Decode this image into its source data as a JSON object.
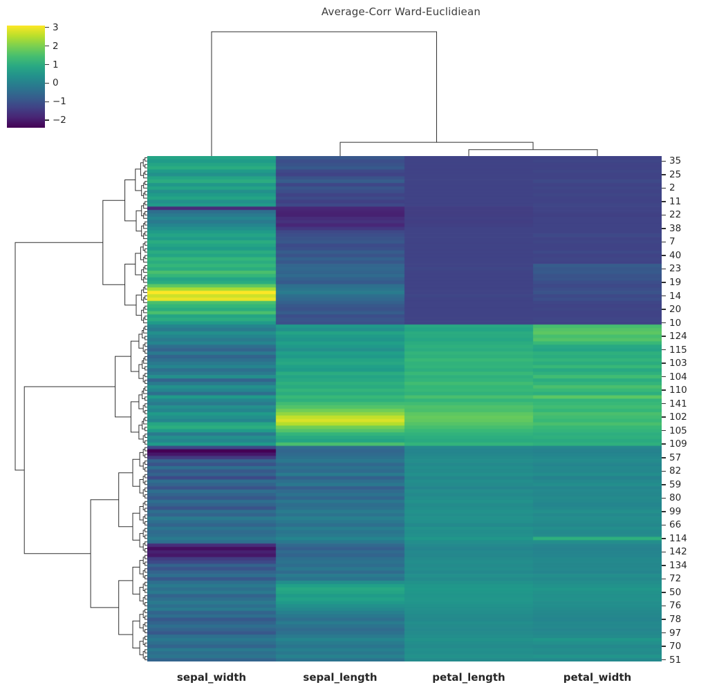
{
  "title": "Average-Corr Ward-Euclidiean",
  "colorbar": {
    "tick_values": [
      3,
      2,
      1,
      0,
      -1,
      -2
    ],
    "tick_labels": [
      "3",
      "2",
      "1",
      "0",
      "−1",
      "−2"
    ],
    "colormap": "viridis"
  },
  "chart_data": {
    "type": "heatmap",
    "title": "Average-Corr Ward-Euclidiean",
    "colormap": "viridis",
    "vmin": -2.4,
    "vmax": 3.1,
    "legend_position": "top-left",
    "columns": [
      "sepal_width",
      "sepal_length",
      "petal_length",
      "petal_width"
    ],
    "col_merge_distances": [
      0.03,
      0.09,
      1.0
    ],
    "row_top_merge_distances": [
      0.93,
      1.0
    ],
    "row_clusters": [
      [
        0,
        49
      ],
      [
        50,
        85
      ],
      [
        86,
        149
      ]
    ],
    "row_tick_start": 1,
    "row_tick_step": 4,
    "row_tick_labels": [
      "35",
      "25",
      "2",
      "11",
      "22",
      "38",
      "7",
      "40",
      "23",
      "19",
      "14",
      "20",
      "10",
      "124",
      "115",
      "103",
      "104",
      "110",
      "141",
      "102",
      "105",
      "109",
      "57",
      "82",
      "59",
      "80",
      "99",
      "66",
      "114",
      "142",
      "134",
      "72",
      "50",
      "76",
      "78",
      "97",
      "70",
      "51"
    ],
    "values": [
      [
        0.8,
        -0.9,
        -1.3,
        -1.3
      ],
      [
        0.6,
        -1.1,
        -1.3,
        -1.25
      ],
      [
        0.8,
        -1.0,
        -1.3,
        -1.3
      ],
      [
        1.0,
        -0.85,
        -1.3,
        -1.3
      ],
      [
        0.6,
        -1.2,
        -1.3,
        -1.25
      ],
      [
        0.35,
        -1.3,
        -1.3,
        -1.3
      ],
      [
        0.8,
        -1.0,
        -1.3,
        -1.3
      ],
      [
        1.0,
        -0.8,
        -1.3,
        -1.2
      ],
      [
        0.5,
        -1.25,
        -1.3,
        -1.3
      ],
      [
        0.8,
        -0.95,
        -1.3,
        -1.25
      ],
      [
        0.35,
        -1.1,
        -1.3,
        -1.3
      ],
      [
        0.6,
        -1.3,
        -1.3,
        -1.25
      ],
      [
        0.8,
        -1.15,
        -1.3,
        -1.3
      ],
      [
        0.35,
        -1.35,
        -1.3,
        -1.3
      ],
      [
        0.6,
        -1.2,
        -1.3,
        -1.25
      ],
      [
        -1.74,
        -1.8,
        -1.4,
        -1.3
      ],
      [
        -0.4,
        -1.87,
        -1.4,
        -1.3
      ],
      [
        -0.15,
        -1.9,
        -1.4,
        -1.35
      ],
      [
        0.1,
        -1.7,
        -1.35,
        -1.3
      ],
      [
        -0.15,
        -1.6,
        -1.4,
        -1.3
      ],
      [
        0.1,
        -1.8,
        -1.35,
        -1.3
      ],
      [
        0.35,
        -1.5,
        -1.3,
        -1.3
      ],
      [
        0.6,
        -1.2,
        -1.3,
        -1.3
      ],
      [
        0.8,
        -1.1,
        -1.3,
        -1.2
      ],
      [
        0.6,
        -1.0,
        -1.3,
        -1.3
      ],
      [
        1.0,
        -0.9,
        -1.3,
        -1.25
      ],
      [
        0.8,
        -1.15,
        -1.3,
        -1.3
      ],
      [
        0.6,
        -1.05,
        -1.3,
        -1.3
      ],
      [
        1.0,
        -0.8,
        -1.3,
        -1.2
      ],
      [
        0.8,
        -1.0,
        -1.3,
        -1.3
      ],
      [
        1.25,
        -0.7,
        -1.3,
        -1.25
      ],
      [
        1.0,
        -0.9,
        -1.3,
        -1.3
      ],
      [
        1.25,
        -0.6,
        -1.3,
        -0.8
      ],
      [
        1.0,
        -0.55,
        -1.25,
        -0.9
      ],
      [
        1.5,
        -0.65,
        -1.3,
        -0.85
      ],
      [
        1.25,
        -0.5,
        -1.3,
        -1.0
      ],
      [
        0.8,
        -0.7,
        -1.3,
        -0.95
      ],
      [
        1.0,
        -0.85,
        -1.3,
        -1.1
      ],
      [
        1.7,
        -0.4,
        -1.3,
        -1.2
      ],
      [
        2.4,
        -0.25,
        -1.3,
        -1.1
      ],
      [
        3.1,
        -0.1,
        -1.3,
        -1.0
      ],
      [
        2.7,
        -0.4,
        -1.25,
        -1.2
      ],
      [
        2.95,
        -0.55,
        -1.3,
        -1.1
      ],
      [
        1.5,
        -0.7,
        -1.3,
        -1.25
      ],
      [
        1.25,
        -0.9,
        -1.3,
        -1.3
      ],
      [
        1.0,
        -1.0,
        -1.3,
        -1.25
      ],
      [
        1.5,
        -0.8,
        -1.3,
        -1.3
      ],
      [
        0.8,
        -1.1,
        -1.3,
        -1.3
      ],
      [
        1.0,
        -0.95,
        -1.3,
        -1.25
      ],
      [
        0.6,
        -1.05,
        -1.3,
        -1.3
      ],
      [
        0.1,
        0.55,
        0.9,
        1.45
      ],
      [
        -0.15,
        0.35,
        0.8,
        1.6
      ],
      [
        0.35,
        0.8,
        1.0,
        1.7
      ],
      [
        0.1,
        0.6,
        0.95,
        1.45
      ],
      [
        -0.15,
        0.45,
        0.85,
        1.6
      ],
      [
        0.1,
        0.7,
        1.0,
        1.3
      ],
      [
        -0.4,
        0.55,
        1.1,
        0.9
      ],
      [
        -0.65,
        0.35,
        1.0,
        0.8
      ],
      [
        -0.15,
        0.7,
        1.2,
        1.1
      ],
      [
        -0.65,
        0.55,
        1.1,
        1.0
      ],
      [
        -0.4,
        0.8,
        1.3,
        1.2
      ],
      [
        -0.15,
        0.9,
        1.15,
        1.0
      ],
      [
        0.1,
        0.7,
        1.2,
        1.3
      ],
      [
        -0.4,
        0.6,
        1.05,
        0.9
      ],
      [
        -0.15,
        1.0,
        1.3,
        1.1
      ],
      [
        0.35,
        0.8,
        1.1,
        1.4
      ],
      [
        -0.65,
        0.9,
        1.2,
        1.0
      ],
      [
        -0.15,
        1.1,
        1.4,
        1.2
      ],
      [
        0.35,
        0.95,
        1.25,
        1.5
      ],
      [
        0.1,
        1.2,
        1.3,
        1.3
      ],
      [
        -0.4,
        1.0,
        1.15,
        1.05
      ],
      [
        0.6,
        1.3,
        1.5,
        1.7
      ],
      [
        0.1,
        1.1,
        1.2,
        1.2
      ],
      [
        -0.15,
        1.4,
        1.4,
        1.3
      ],
      [
        0.35,
        1.6,
        1.55,
        1.4
      ],
      [
        0.1,
        1.9,
        1.5,
        1.25
      ],
      [
        0.6,
        2.2,
        1.7,
        1.5
      ],
      [
        0.35,
        2.6,
        1.8,
        1.4
      ],
      [
        0.1,
        2.8,
        1.75,
        1.3
      ],
      [
        0.85,
        2.5,
        1.6,
        1.5
      ],
      [
        1.05,
        1.9,
        1.45,
        1.3
      ],
      [
        0.6,
        1.6,
        1.3,
        1.2
      ],
      [
        -0.15,
        1.2,
        1.15,
        1.05
      ],
      [
        0.35,
        0.95,
        1.05,
        1.1
      ],
      [
        0.1,
        0.8,
        0.95,
        0.95
      ],
      [
        0.6,
        1.5,
        1.2,
        1.1
      ],
      [
        -1.2,
        -0.45,
        0.2,
        0.15
      ],
      [
        -2.4,
        -0.6,
        0.1,
        0.05
      ],
      [
        -2.05,
        -0.5,
        0.15,
        0.1
      ],
      [
        -1.45,
        -0.35,
        0.25,
        0.2
      ],
      [
        -0.65,
        -0.2,
        0.3,
        0.25
      ],
      [
        -1.0,
        -0.55,
        0.2,
        0.1
      ],
      [
        -0.4,
        -0.3,
        0.3,
        0.2
      ],
      [
        -0.9,
        -0.5,
        0.25,
        0.15
      ],
      [
        -0.65,
        -0.1,
        0.35,
        0.3
      ],
      [
        -1.2,
        -0.7,
        0.15,
        0.05
      ],
      [
        -0.4,
        -0.4,
        0.3,
        0.2
      ],
      [
        -0.65,
        -0.2,
        0.25,
        0.3
      ],
      [
        -1.0,
        -0.75,
        0.1,
        0.1
      ],
      [
        -0.4,
        -0.5,
        0.3,
        0.2
      ],
      [
        -0.65,
        -0.3,
        0.2,
        0.15
      ],
      [
        -0.9,
        -0.6,
        0.3,
        0.25
      ],
      [
        -0.4,
        -0.2,
        0.4,
        0.2
      ],
      [
        -0.65,
        -0.45,
        0.25,
        0.1
      ],
      [
        -1.0,
        -0.35,
        0.3,
        0.2
      ],
      [
        -0.4,
        -0.1,
        0.4,
        0.35
      ],
      [
        -0.65,
        -0.3,
        0.3,
        0.2
      ],
      [
        -0.15,
        0.0,
        0.4,
        0.3
      ],
      [
        -0.4,
        -0.2,
        0.35,
        0.25
      ],
      [
        -0.65,
        -0.4,
        0.2,
        0.15
      ],
      [
        -0.25,
        -0.05,
        0.4,
        0.3
      ],
      [
        -0.5,
        -0.25,
        0.3,
        0.2
      ],
      [
        -0.4,
        -0.15,
        0.35,
        0.25
      ],
      [
        -0.15,
        0.1,
        0.5,
        1.1
      ],
      [
        -0.4,
        -0.2,
        0.3,
        0.3
      ],
      [
        -1.7,
        -0.55,
        0.2,
        0.1
      ],
      [
        -2.2,
        -0.75,
        0.1,
        0.05
      ],
      [
        -1.9,
        -0.5,
        0.2,
        0.1
      ],
      [
        -2.05,
        -0.65,
        0.15,
        0.1
      ],
      [
        -1.45,
        -0.4,
        0.25,
        0.2
      ],
      [
        -1.2,
        -0.3,
        0.3,
        0.2
      ],
      [
        -0.65,
        -0.45,
        0.25,
        0.15
      ],
      [
        -1.0,
        -0.2,
        0.3,
        0.2
      ],
      [
        -0.65,
        -0.5,
        0.2,
        0.1
      ],
      [
        -0.4,
        -0.1,
        0.35,
        0.3
      ],
      [
        -0.9,
        -0.3,
        0.25,
        0.2
      ],
      [
        -0.4,
        0.3,
        0.4,
        0.3
      ],
      [
        -0.15,
        0.7,
        0.5,
        0.4
      ],
      [
        -0.4,
        0.9,
        0.55,
        0.5
      ],
      [
        -0.15,
        0.8,
        0.5,
        0.4
      ],
      [
        -0.65,
        0.6,
        0.45,
        0.35
      ],
      [
        -0.4,
        0.75,
        0.5,
        0.4
      ],
      [
        -0.15,
        0.55,
        0.45,
        0.3
      ],
      [
        -0.4,
        0.35,
        0.4,
        0.3
      ],
      [
        -0.15,
        0.2,
        0.35,
        0.25
      ],
      [
        -0.65,
        0.0,
        0.3,
        0.2
      ],
      [
        -0.4,
        -0.2,
        0.25,
        0.15
      ],
      [
        -0.9,
        -0.4,
        0.2,
        0.1
      ],
      [
        -0.65,
        -0.1,
        0.3,
        0.2
      ],
      [
        -0.4,
        -0.3,
        0.25,
        0.2
      ],
      [
        -0.65,
        -0.5,
        0.2,
        0.1
      ],
      [
        -0.9,
        -0.35,
        0.25,
        0.2
      ],
      [
        -0.4,
        -0.15,
        0.3,
        0.25
      ],
      [
        -0.2,
        0.1,
        0.4,
        0.5
      ],
      [
        -0.4,
        -0.1,
        0.3,
        0.35
      ],
      [
        -0.65,
        -0.25,
        0.25,
        0.2
      ],
      [
        -0.15,
        0.0,
        0.35,
        0.3
      ],
      [
        -0.4,
        -0.2,
        0.3,
        0.25
      ],
      [
        -0.25,
        0.05,
        0.4,
        0.45
      ],
      [
        -0.65,
        -0.3,
        0.25,
        0.2
      ]
    ]
  }
}
